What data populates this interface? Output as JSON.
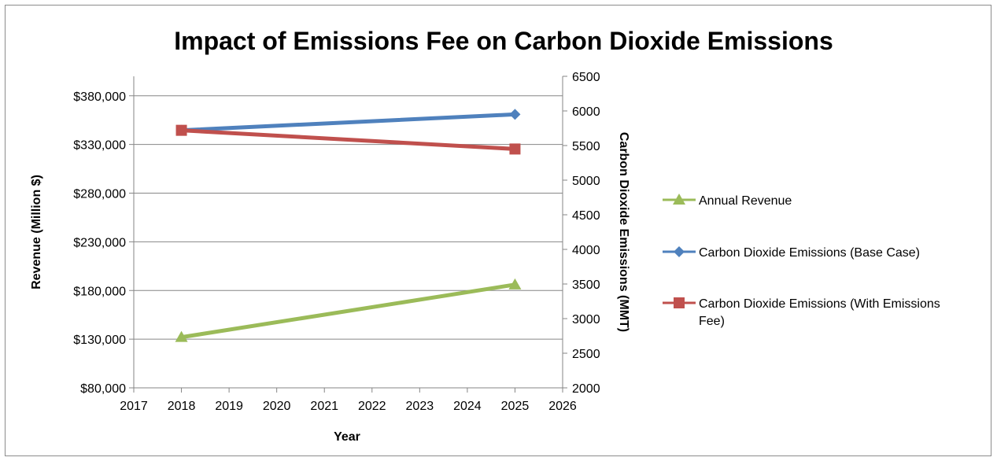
{
  "chart_data": {
    "type": "line",
    "title": "Impact of Emissions Fee on Carbon Dioxide Emissions",
    "xlabel": "Year",
    "ylabel": "Revenue (Million $)",
    "y2label": "Carbon Dioxide Emissions  (MMT)",
    "xlim": [
      2017,
      2026
    ],
    "x_ticks": [
      "2017",
      "2018",
      "2019",
      "2020",
      "2021",
      "2022",
      "2023",
      "2024",
      "2025",
      "2026"
    ],
    "ylim": [
      80000,
      400000
    ],
    "y_ticks": [
      80000,
      130000,
      180000,
      230000,
      280000,
      330000,
      380000
    ],
    "y_tick_labels": [
      "$80,000",
      "$130,000",
      "$180,000",
      "$230,000",
      "$280,000",
      "$330,000",
      "$380,000"
    ],
    "y2lim": [
      2000,
      6500
    ],
    "y2_ticks": [
      "2000",
      "2500",
      "3000",
      "3500",
      "4000",
      "4500",
      "5000",
      "5500",
      "6000",
      "6500"
    ],
    "grid": true,
    "legend_position": "right",
    "series": [
      {
        "name": "Annual Revenue",
        "axis": "left",
        "color": "#9bbb59",
        "marker": "triangle",
        "x": [
          2018,
          2025
        ],
        "values": [
          132000,
          186000
        ]
      },
      {
        "name": "Carbon Dioxide Emissions (Base Case)",
        "axis": "right",
        "color": "#4f81bd",
        "marker": "diamond",
        "x": [
          2018,
          2025
        ],
        "values": [
          5720,
          5950
        ]
      },
      {
        "name": "Carbon Dioxide Emissions (With Emissions Fee)",
        "axis": "right",
        "color": "#c0504d",
        "marker": "square",
        "x": [
          2018,
          2025
        ],
        "values": [
          5720,
          5450
        ]
      }
    ],
    "legend_lines": [
      [
        "Annual Revenue"
      ],
      [
        "Carbon Dioxide Emissions (Base Case)"
      ],
      [
        "Carbon Dioxide Emissions (With Emissions",
        "Fee)"
      ]
    ]
  }
}
